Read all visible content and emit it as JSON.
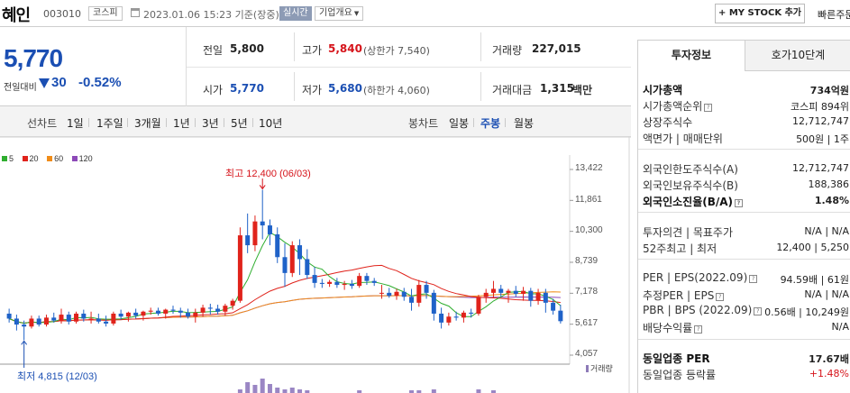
{
  "header": {
    "name": "혜인",
    "code": "003010",
    "market": "코스피",
    "datetime": "2023.01.06 15:23 기준(장중)",
    "realtime": "실시간",
    "company_info": "기업개요",
    "mystock_btn": "+ MY STOCK 추가",
    "quick_order": "빠른주문"
  },
  "price": {
    "current": "5,770",
    "change_label": "전일대비",
    "change": "30",
    "rate": "-0.52%"
  },
  "quote": {
    "prev_close_label": "전일",
    "prev_close": "5,800",
    "high_label": "고가",
    "high": "5,840",
    "upper_limit": "(상한가 7,540)",
    "volume_label": "거래량",
    "volume": "227,015",
    "open_label": "시가",
    "open": "5,770",
    "low_label": "저가",
    "low": "5,680",
    "lower_limit": "(하한가 4,060)",
    "amount_label": "거래대금",
    "amount": "1,315",
    "amount_unit": "백만"
  },
  "tabs": {
    "line_chart": "선차트",
    "periods": [
      "1일",
      "1주일",
      "3개월",
      "1년",
      "3년",
      "5년",
      "10년"
    ],
    "candle_chart": "봉차트",
    "candle_periods": [
      "일봉",
      "주봉",
      "월봉"
    ],
    "active_candle": "주봉"
  },
  "chart_data": {
    "type": "candlestick",
    "legend": [
      {
        "name": "5",
        "color": "#2fae2f"
      },
      {
        "name": "20",
        "color": "#e0231b"
      },
      {
        "name": "60",
        "color": "#f08c18"
      },
      {
        "name": "120",
        "color": "#8d49b8"
      }
    ],
    "y_ticks": [
      "13,422",
      "11,861",
      "10,300",
      "8,739",
      "7,178",
      "5,617",
      "4,057"
    ],
    "ylim": [
      4057,
      13422
    ],
    "high_annotation": "최고 12,400 (06/03)",
    "low_annotation": "최저 4,815 (12/03)",
    "volume_label": "거래량",
    "candles": [
      {
        "o": 6150,
        "h": 6400,
        "l": 5700,
        "c": 5900
      },
      {
        "o": 5900,
        "h": 6100,
        "l": 5300,
        "c": 5600
      },
      {
        "o": 5600,
        "h": 5800,
        "l": 4815,
        "c": 5500
      },
      {
        "o": 5500,
        "h": 6050,
        "l": 5400,
        "c": 5900
      },
      {
        "o": 5900,
        "h": 6050,
        "l": 5500,
        "c": 5600
      },
      {
        "o": 5600,
        "h": 6100,
        "l": 5500,
        "c": 5950
      },
      {
        "o": 5950,
        "h": 6200,
        "l": 5700,
        "c": 5800
      },
      {
        "o": 5800,
        "h": 6400,
        "l": 5650,
        "c": 6100
      },
      {
        "o": 6100,
        "h": 6250,
        "l": 5600,
        "c": 5750
      },
      {
        "o": 5750,
        "h": 6250,
        "l": 5650,
        "c": 6150
      },
      {
        "o": 6150,
        "h": 6350,
        "l": 5750,
        "c": 5900
      },
      {
        "o": 5900,
        "h": 6250,
        "l": 5650,
        "c": 5900
      },
      {
        "o": 5900,
        "h": 6150,
        "l": 5650,
        "c": 5750
      },
      {
        "o": 5750,
        "h": 6050,
        "l": 5500,
        "c": 5650
      },
      {
        "o": 5650,
        "h": 6250,
        "l": 5550,
        "c": 6150
      },
      {
        "o": 6150,
        "h": 6350,
        "l": 5850,
        "c": 6000
      },
      {
        "o": 6000,
        "h": 6250,
        "l": 5750,
        "c": 6200
      },
      {
        "o": 6200,
        "h": 6400,
        "l": 5900,
        "c": 6050
      },
      {
        "o": 6050,
        "h": 6300,
        "l": 5800,
        "c": 6250
      },
      {
        "o": 6250,
        "h": 6450,
        "l": 6100,
        "c": 6300
      },
      {
        "o": 6300,
        "h": 6450,
        "l": 6050,
        "c": 6150
      },
      {
        "o": 6150,
        "h": 6400,
        "l": 5900,
        "c": 6350
      },
      {
        "o": 6350,
        "h": 6550,
        "l": 6150,
        "c": 6300
      },
      {
        "o": 6300,
        "h": 6450,
        "l": 5950,
        "c": 6200
      },
      {
        "o": 6200,
        "h": 6400,
        "l": 5900,
        "c": 6000
      },
      {
        "o": 6000,
        "h": 6400,
        "l": 5700,
        "c": 6200
      },
      {
        "o": 6200,
        "h": 6600,
        "l": 6000,
        "c": 6450
      },
      {
        "o": 6450,
        "h": 6650,
        "l": 6100,
        "c": 6400
      },
      {
        "o": 6400,
        "h": 6600,
        "l": 6100,
        "c": 6250
      },
      {
        "o": 6250,
        "h": 6650,
        "l": 6050,
        "c": 6550
      },
      {
        "o": 6550,
        "h": 6900,
        "l": 6350,
        "c": 6800
      },
      {
        "o": 6800,
        "h": 10500,
        "l": 6700,
        "c": 10100
      },
      {
        "o": 10100,
        "h": 11200,
        "l": 9200,
        "c": 9600
      },
      {
        "o": 9600,
        "h": 11100,
        "l": 9300,
        "c": 10800
      },
      {
        "o": 10800,
        "h": 12400,
        "l": 9900,
        "c": 10600
      },
      {
        "o": 10600,
        "h": 10900,
        "l": 9600,
        "c": 10150
      },
      {
        "o": 10150,
        "h": 10500,
        "l": 8700,
        "c": 9000
      },
      {
        "o": 9000,
        "h": 9700,
        "l": 7500,
        "c": 8200
      },
      {
        "o": 8200,
        "h": 9800,
        "l": 8000,
        "c": 9600
      },
      {
        "o": 9600,
        "h": 9900,
        "l": 8100,
        "c": 8900
      },
      {
        "o": 8900,
        "h": 9400,
        "l": 7900,
        "c": 8100
      },
      {
        "o": 8100,
        "h": 8500,
        "l": 7450,
        "c": 7700
      },
      {
        "o": 7700,
        "h": 7900,
        "l": 7450,
        "c": 7650
      },
      {
        "o": 7650,
        "h": 7850,
        "l": 7500,
        "c": 7750
      },
      {
        "o": 7750,
        "h": 7950,
        "l": 7450,
        "c": 7600
      },
      {
        "o": 7600,
        "h": 7800,
        "l": 7350,
        "c": 7650
      },
      {
        "o": 7650,
        "h": 7850,
        "l": 7400,
        "c": 7550
      },
      {
        "o": 7550,
        "h": 8200,
        "l": 7450,
        "c": 8050
      },
      {
        "o": 8050,
        "h": 8200,
        "l": 7600,
        "c": 7800
      },
      {
        "o": 7800,
        "h": 7950,
        "l": 7550,
        "c": 7700
      },
      {
        "o": 7200,
        "h": 7600,
        "l": 6900,
        "c": 7200
      },
      {
        "o": 7200,
        "h": 7450,
        "l": 6950,
        "c": 7050
      },
      {
        "o": 7050,
        "h": 7400,
        "l": 6850,
        "c": 7250
      },
      {
        "o": 7250,
        "h": 7450,
        "l": 6800,
        "c": 7000
      },
      {
        "o": 7000,
        "h": 7400,
        "l": 6300,
        "c": 6700
      },
      {
        "o": 6700,
        "h": 7850,
        "l": 6500,
        "c": 7600
      },
      {
        "o": 7600,
        "h": 7800,
        "l": 6900,
        "c": 7200
      },
      {
        "o": 7200,
        "h": 7350,
        "l": 5800,
        "c": 6150
      },
      {
        "o": 6150,
        "h": 6450,
        "l": 5400,
        "c": 5700
      },
      {
        "o": 5700,
        "h": 6200,
        "l": 5550,
        "c": 6000
      },
      {
        "o": 6000,
        "h": 6250,
        "l": 5800,
        "c": 5950
      },
      {
        "o": 5950,
        "h": 6300,
        "l": 5700,
        "c": 6200
      },
      {
        "o": 6200,
        "h": 6400,
        "l": 5950,
        "c": 6150
      },
      {
        "o": 6150,
        "h": 7100,
        "l": 6050,
        "c": 7000
      },
      {
        "o": 7000,
        "h": 7400,
        "l": 6700,
        "c": 7200
      },
      {
        "o": 7200,
        "h": 7800,
        "l": 6950,
        "c": 7400
      },
      {
        "o": 7400,
        "h": 7600,
        "l": 7000,
        "c": 7200
      },
      {
        "o": 7200,
        "h": 7400,
        "l": 6700,
        "c": 7300
      },
      {
        "o": 7300,
        "h": 7550,
        "l": 7000,
        "c": 7150
      },
      {
        "o": 7150,
        "h": 7500,
        "l": 6800,
        "c": 7300
      },
      {
        "o": 7300,
        "h": 7450,
        "l": 6500,
        "c": 6800
      },
      {
        "o": 6800,
        "h": 7400,
        "l": 6600,
        "c": 7200
      },
      {
        "o": 7200,
        "h": 7400,
        "l": 6200,
        "c": 6700
      },
      {
        "o": 6700,
        "h": 6900,
        "l": 6100,
        "c": 6300
      },
      {
        "o": 6300,
        "h": 6600,
        "l": 5650,
        "c": 5770
      }
    ]
  },
  "panel": {
    "tab_active": "투자정보",
    "tab_other": "호가10단계",
    "rows": [
      {
        "label": "시가총액",
        "value": "734억원",
        "bold": true
      },
      {
        "label": "시가총액순위",
        "value": "코스피 894위",
        "icon": true
      },
      {
        "label": "상장주식수",
        "value": "12,712,747"
      },
      {
        "label": "액면가 | 매매단위",
        "value": "500원 | 1주"
      },
      {
        "label": "외국인한도주식수(A)",
        "value": "12,712,747"
      },
      {
        "label": "외국인보유주식수(B)",
        "value": "188,386"
      },
      {
        "label": "외국인소진율(B/A)",
        "value": "1.48%",
        "bold": true,
        "icon": true
      },
      {
        "label": "투자의견 | 목표주가",
        "value": "N/A | N/A"
      },
      {
        "label": "52주최고 | 최저",
        "value": "12,400 | 5,250"
      },
      {
        "label": "PER | EPS(2022.09)",
        "value": "94.59배 | 61원",
        "icon": true
      },
      {
        "label": "추정PER | EPS",
        "value": "N/A | N/A",
        "icon": true
      },
      {
        "label": "PBR | BPS (2022.09)",
        "value": "0.56배 | 10,249원",
        "icon": true
      },
      {
        "label": "배당수익률",
        "value": "N/A",
        "icon": true
      },
      {
        "label": "동일업종 PER",
        "value": "17.67배",
        "bold": true
      },
      {
        "label": "동일업종 등락률",
        "value": "+1.48%",
        "red": true
      }
    ]
  }
}
